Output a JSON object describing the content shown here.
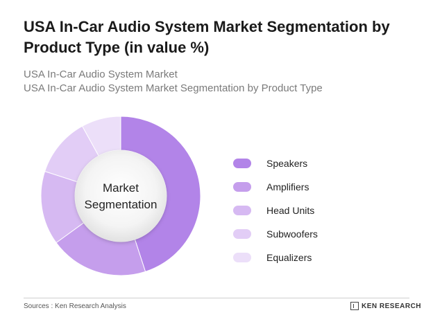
{
  "title": "USA In-Car Audio System Market Segmentation by Product Type (in value %)",
  "subtitle1": "USA In-Car Audio System Market",
  "subtitle2": "USA In-Car Audio System Market Segmentation by Product Type",
  "center_label_line1": "Market",
  "center_label_line2": "Segmentation",
  "source": "Sources : Ken Research Analysis",
  "brand": "KEN RESEARCH",
  "chart_data": {
    "type": "pie",
    "categories": [
      "Speakers",
      "Amplifiers",
      "Head Units",
      "Subwoofers",
      "Equalizers"
    ],
    "values": [
      45,
      20,
      15,
      12,
      8
    ],
    "colors": [
      "#b284e8",
      "#c59eec",
      "#d6b9f2",
      "#e2cdf6",
      "#ecdff9"
    ],
    "legend_position": "right"
  }
}
